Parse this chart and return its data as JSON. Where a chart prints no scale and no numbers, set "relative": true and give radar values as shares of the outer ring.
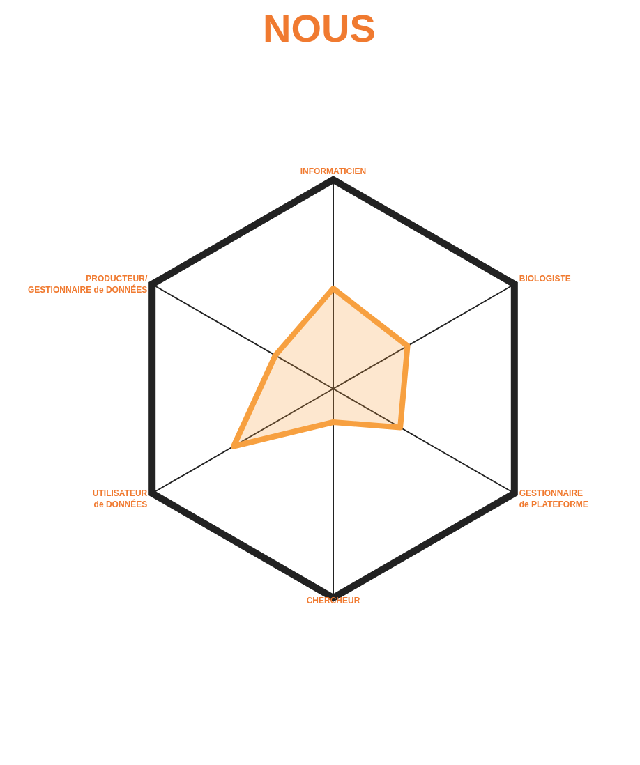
{
  "chart_data": {
    "type": "radar",
    "title": "NOUS",
    "relative": true,
    "grid": true,
    "categories": [
      "INFORMATICIEN",
      "BIOLOGISTE",
      "GESTIONNAIRE\nde PLATEFORME",
      "CHERCHEUR",
      "UTILISATEUR\nde DONNÉES",
      "PRODUCTEUR/\nGESTIONNAIRE de DONNÉES"
    ],
    "series": [
      {
        "color": "#f7a040",
        "values": [
          0.48,
          0.41,
          0.37,
          0.16,
          0.55,
          0.32
        ]
      }
    ]
  }
}
